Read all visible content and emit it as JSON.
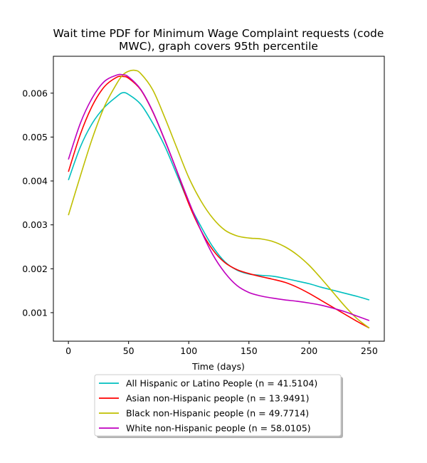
{
  "chart_data": {
    "type": "line",
    "title_line1": "Wait time PDF for Minimum Wage Complaint  requests (code",
    "title_line2": "MWC), graph covers 95th percentile",
    "xlabel": "Time (days)",
    "ylabel": "",
    "xlim": [
      -12.5,
      262.5
    ],
    "ylim": [
      0.00035,
      0.00684
    ],
    "xticks": [
      0,
      50,
      100,
      150,
      200,
      250
    ],
    "xtick_labels": [
      "0",
      "50",
      "100",
      "150",
      "200",
      "250"
    ],
    "yticks": [
      0.001,
      0.002,
      0.003,
      0.004,
      0.005,
      0.006
    ],
    "ytick_labels": [
      "0.001",
      "0.002",
      "0.003",
      "0.004",
      "0.005",
      "0.006"
    ],
    "grid": false,
    "legend_position": "below",
    "series": [
      {
        "name": "All Hispanic or Latino People (n = 41.5104)",
        "color": "#00bfbf",
        "x": [
          0,
          10,
          20,
          30,
          40,
          45,
          50,
          60,
          70,
          80,
          90,
          100,
          110,
          120,
          130,
          140,
          150,
          160,
          170,
          180,
          190,
          200,
          210,
          220,
          230,
          240,
          250
        ],
        "y": [
          0.00402,
          0.00478,
          0.00532,
          0.00568,
          0.00592,
          0.00601,
          0.00597,
          0.00575,
          0.00532,
          0.0048,
          0.00415,
          0.0035,
          0.00297,
          0.0025,
          0.00216,
          0.00197,
          0.00188,
          0.00185,
          0.00183,
          0.00178,
          0.00172,
          0.00166,
          0.00158,
          0.00151,
          0.00144,
          0.00137,
          0.00129
        ]
      },
      {
        "name": "Asian non-Hispanic people (n = 13.9491)",
        "color": "#ff0000",
        "x": [
          0,
          10,
          20,
          30,
          40,
          45,
          50,
          60,
          70,
          80,
          90,
          100,
          110,
          120,
          130,
          140,
          150,
          160,
          170,
          180,
          190,
          200,
          210,
          220,
          230,
          240,
          250
        ],
        "y": [
          0.00421,
          0.00507,
          0.00572,
          0.00615,
          0.00636,
          0.00638,
          0.00634,
          0.00608,
          0.00558,
          0.00493,
          0.00423,
          0.00348,
          0.00288,
          0.00243,
          0.00214,
          0.00198,
          0.00189,
          0.00182,
          0.00176,
          0.00169,
          0.00158,
          0.00144,
          0.00128,
          0.00112,
          0.00096,
          0.0008,
          0.00065
        ]
      },
      {
        "name": "Black non-Hispanic people (n = 49.7714)",
        "color": "#bfbf00",
        "x": [
          0,
          10,
          20,
          30,
          40,
          45,
          50,
          55,
          60,
          70,
          80,
          90,
          100,
          110,
          120,
          130,
          140,
          150,
          160,
          170,
          180,
          190,
          200,
          210,
          220,
          230,
          240,
          250
        ],
        "y": [
          0.00322,
          0.00412,
          0.00498,
          0.0057,
          0.00621,
          0.00641,
          0.0065,
          0.00652,
          0.00645,
          0.00608,
          0.00545,
          0.00476,
          0.00408,
          0.00355,
          0.00315,
          0.00288,
          0.00275,
          0.0027,
          0.00268,
          0.00262,
          0.0025,
          0.00232,
          0.00208,
          0.00178,
          0.00146,
          0.00114,
          0.00086,
          0.00065
        ]
      },
      {
        "name": "White non-Hispanic people (n = 58.0105)",
        "color": "#bf00bf",
        "x": [
          0,
          10,
          20,
          30,
          40,
          45,
          50,
          60,
          70,
          80,
          90,
          100,
          110,
          120,
          130,
          140,
          150,
          160,
          170,
          180,
          190,
          200,
          210,
          220,
          230,
          240,
          250
        ],
        "y": [
          0.00449,
          0.00532,
          0.0059,
          0.00627,
          0.00641,
          0.00642,
          0.00637,
          0.00609,
          0.00559,
          0.00494,
          0.00424,
          0.00354,
          0.00288,
          0.00232,
          0.00191,
          0.00162,
          0.00146,
          0.00138,
          0.00133,
          0.00129,
          0.00126,
          0.00122,
          0.00117,
          0.0011,
          0.00102,
          0.00092,
          0.00082
        ]
      }
    ]
  }
}
